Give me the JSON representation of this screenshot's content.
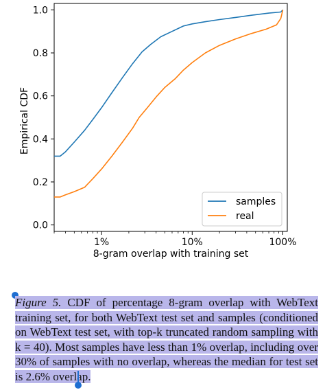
{
  "chart_data": {
    "type": "line",
    "xlabel": "8-gram overlap with training set",
    "ylabel": "Empirical CDF",
    "xscale": "log",
    "xlim": [
      0.3,
      112
    ],
    "ylim": [
      -0.03,
      1.03
    ],
    "xticks": [
      {
        "v": 1,
        "label": "1%"
      },
      {
        "v": 10,
        "label": "10%"
      },
      {
        "v": 100,
        "label": "100%"
      }
    ],
    "yticks": [
      {
        "v": 0.0,
        "label": "0.0"
      },
      {
        "v": 0.2,
        "label": "0.2"
      },
      {
        "v": 0.4,
        "label": "0.4"
      },
      {
        "v": 0.6,
        "label": "0.6"
      },
      {
        "v": 0.8,
        "label": "0.8"
      },
      {
        "v": 1.0,
        "label": "1.0"
      }
    ],
    "grid": false,
    "legend": "lower right",
    "series": [
      {
        "name": "samples",
        "color": "#1f77b4",
        "x": [
          0.3,
          0.35,
          0.4,
          0.5,
          0.65,
          0.8,
          1.0,
          1.3,
          1.7,
          2.2,
          2.8,
          3.5,
          4.5,
          6,
          8,
          10,
          14,
          20,
          30,
          45,
          70,
          95,
          100
        ],
        "y": [
          0.32,
          0.32,
          0.34,
          0.385,
          0.44,
          0.49,
          0.545,
          0.615,
          0.685,
          0.75,
          0.805,
          0.84,
          0.875,
          0.9,
          0.925,
          0.935,
          0.945,
          0.955,
          0.965,
          0.975,
          0.985,
          0.99,
          1.0
        ]
      },
      {
        "name": "real",
        "color": "#ff7f0e",
        "x": [
          0.3,
          0.35,
          0.4,
          0.5,
          0.65,
          0.8,
          1.0,
          1.3,
          1.7,
          2.2,
          2.6,
          3.2,
          4.0,
          5.0,
          6.5,
          8,
          10,
          14,
          20,
          30,
          45,
          65,
          85,
          95,
          100
        ],
        "y": [
          0.13,
          0.13,
          0.14,
          0.155,
          0.175,
          0.215,
          0.26,
          0.32,
          0.385,
          0.45,
          0.5,
          0.545,
          0.595,
          0.64,
          0.68,
          0.72,
          0.755,
          0.8,
          0.835,
          0.865,
          0.89,
          0.91,
          0.93,
          0.96,
          1.0
        ]
      }
    ]
  },
  "caption": {
    "figure_label": "Figure 5.",
    "text": " CDF of percentage 8-gram overlap with WebText training set, for both WebText test set and samples (conditioned on WebText test set, with top-k truncated random sampling with k = 40). Most samples have less than 1% overlap, including over 30% of samples with no overlap, whereas the median for test set is 2.6% overlap."
  }
}
